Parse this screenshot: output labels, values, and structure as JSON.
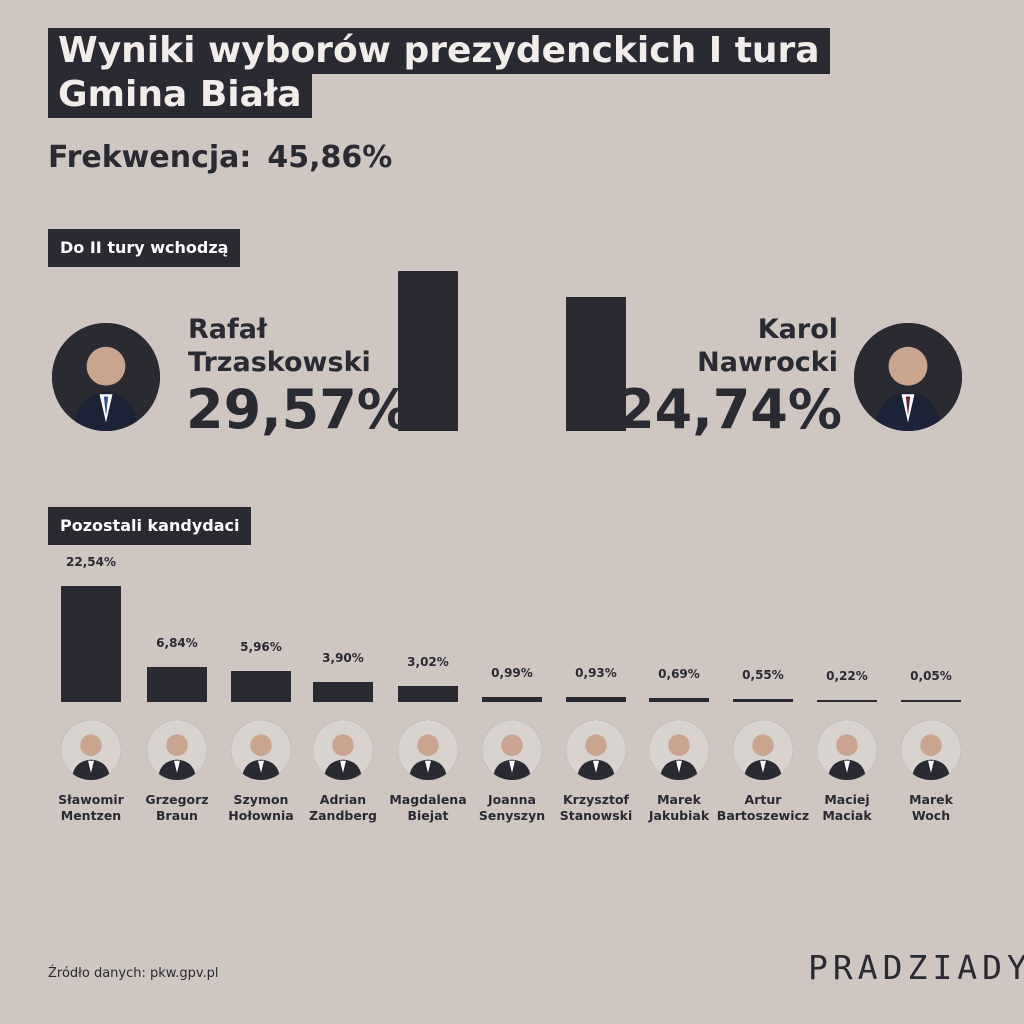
{
  "title_line1": "Wyniki wyborów prezydenckich I tura",
  "title_line2": "Gmina Biała",
  "turnout": {
    "label": "Frekwencja:",
    "value": "45,86%"
  },
  "section_runoff": "Do II tury wchodzą",
  "section_others": "Pozostali kandydaci",
  "source": "Źródło danych: pkw.gpv.pl",
  "brand": "PRADZIADY",
  "colors": {
    "background": "#cfc6c1",
    "dark": "#2a2a33"
  },
  "chart_data": [
    {
      "type": "bar",
      "categories": [
        "Rafał Trzaskowski",
        "Karol Nawrocki"
      ],
      "values": [
        29.57,
        24.74
      ],
      "labels": [
        "29,57%",
        "24,74%"
      ],
      "first_names": [
        "Rafał",
        "Karol"
      ],
      "last_names": [
        "Trzaskowski",
        "Nawrocki"
      ],
      "ylim": [
        0,
        29.57
      ]
    },
    {
      "type": "bar",
      "categories": [
        "Sławomir Mentzen",
        "Grzegorz Braun",
        "Szymon Hołownia",
        "Adrian Zandberg",
        "Magdalena Biejat",
        "Joanna Senyszyn",
        "Krzysztof Stanowski",
        "Marek Jakubiak",
        "Artur Bartoszewicz",
        "Maciej Maciak",
        "Marek Woch"
      ],
      "first_names": [
        "Sławomir",
        "Grzegorz",
        "Szymon",
        "Adrian",
        "Magdalena",
        "Joanna",
        "Krzysztof",
        "Marek",
        "Artur",
        "Maciej",
        "Marek"
      ],
      "last_names": [
        "Mentzen",
        "Braun",
        "Hołownia",
        "Zandberg",
        "Biejat",
        "Senyszyn",
        "Stanowski",
        "Jakubiak",
        "Bartoszewicz",
        "Maciak",
        "Woch"
      ],
      "values": [
        22.54,
        6.84,
        5.96,
        3.9,
        3.02,
        0.99,
        0.93,
        0.69,
        0.55,
        0.22,
        0.05
      ],
      "labels": [
        "22,54%",
        "6,84%",
        "5,96%",
        "3,90%",
        "3,02%",
        "0,99%",
        "0,93%",
        "0,69%",
        "0,55%",
        "0,22%",
        "0,05%"
      ],
      "ylim": [
        0,
        22.54
      ]
    }
  ]
}
